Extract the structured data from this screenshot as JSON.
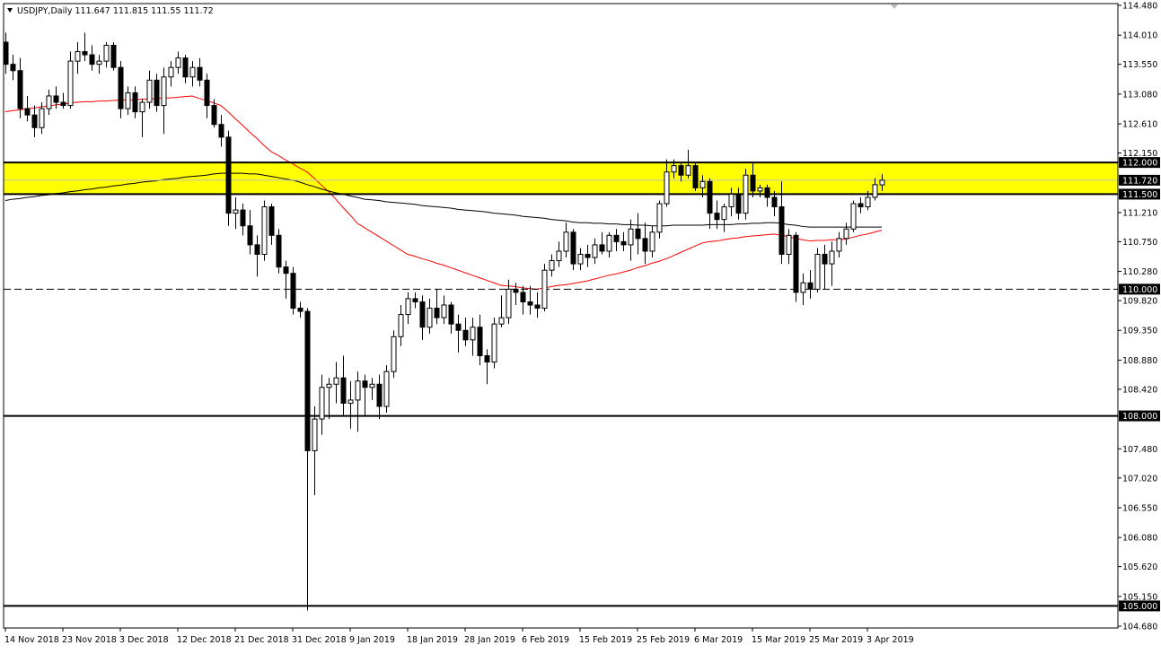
{
  "chart_data": {
    "type": "candlestick",
    "title": "USDJPY,Daily",
    "categories": [
      "14 Nov 2018",
      null,
      null,
      null,
      null,
      null,
      null,
      null,
      "23 Nov 2018",
      null,
      null,
      null,
      null,
      null,
      null,
      null,
      "3 Dec 2018",
      null,
      null,
      null,
      null,
      null,
      null,
      null,
      "12 Dec 2018",
      null,
      null,
      null,
      null,
      null,
      null,
      null,
      "21 Dec 2018",
      null,
      null,
      null,
      null,
      null,
      null,
      null,
      "31 Dec 2018",
      null,
      null,
      null,
      null,
      null,
      null,
      null,
      "9 Jan 2019",
      null,
      null,
      null,
      null,
      null,
      null,
      null,
      "18 Jan 2019",
      null,
      null,
      null,
      null,
      null,
      null,
      null,
      "28 Jan 2019",
      null,
      null,
      null,
      null,
      null,
      null,
      null,
      "6 Feb 2019",
      null,
      null,
      null,
      null,
      null,
      null,
      null,
      "15 Feb 2019",
      null,
      null,
      null,
      null,
      null,
      null,
      null,
      "25 Feb 2019",
      null,
      null,
      null,
      null,
      null,
      null,
      null,
      "6 Mar 2019",
      null,
      null,
      null,
      null,
      null,
      null,
      null,
      "15 Mar 2019",
      null,
      null,
      null,
      null,
      null,
      null,
      null,
      "25 Mar 2019",
      null,
      null,
      null,
      null,
      null,
      null,
      null,
      "3 Apr 2019",
      null,
      null
    ],
    "open": [
      113.9,
      113.55,
      113.45,
      112.85,
      112.75,
      112.55,
      112.85,
      113.05,
      112.95,
      112.9,
      113.6,
      113.75,
      113.7,
      113.55,
      113.6,
      113.85,
      113.5,
      112.85,
      113.1,
      112.8,
      112.95,
      113.3,
      112.9,
      113.35,
      113.5,
      113.65,
      113.35,
      113.5,
      113.3,
      112.9,
      112.6,
      112.4,
      111.2,
      111.25,
      111.0,
      110.7,
      110.55,
      111.3,
      110.85,
      110.35,
      110.25,
      109.7,
      109.65,
      107.45,
      107.95,
      108.45,
      108.5,
      108.6,
      108.2,
      108.25,
      108.55,
      108.45,
      108.5,
      108.15,
      108.7,
      109.25,
      109.6,
      109.85,
      109.8,
      109.4,
      109.7,
      109.55,
      109.75,
      109.45,
      109.35,
      109.2,
      109.4,
      108.95,
      108.85,
      109.45,
      109.55,
      110.0,
      109.95,
      109.8,
      109.75,
      109.7,
      110.3,
      110.45,
      110.6,
      110.9,
      110.4,
      110.55,
      110.5,
      110.7,
      110.6,
      110.85,
      110.75,
      110.7,
      110.95,
      110.8,
      110.6,
      110.9,
      111.35,
      111.85,
      111.95,
      111.8,
      111.95,
      111.6,
      111.7,
      111.2,
      111.1,
      111.3,
      111.5,
      111.2,
      111.8,
      111.55,
      111.6,
      111.45,
      111.3,
      110.55,
      110.85,
      109.95,
      110.1,
      110.0,
      110.55,
      110.4,
      110.6,
      110.8,
      110.95,
      111.35,
      111.3,
      111.45,
      111.647
    ],
    "high": [
      114.05,
      113.7,
      113.65,
      113.05,
      112.9,
      112.95,
      113.15,
      113.2,
      113.1,
      113.75,
      113.9,
      114.05,
      113.85,
      113.7,
      113.9,
      113.9,
      113.6,
      113.2,
      113.2,
      113.0,
      113.45,
      113.4,
      113.5,
      113.6,
      113.75,
      113.7,
      113.6,
      113.65,
      113.4,
      113.0,
      112.75,
      112.5,
      111.45,
      111.35,
      111.25,
      110.85,
      111.4,
      111.35,
      110.95,
      110.45,
      110.35,
      109.8,
      109.7,
      108.15,
      108.65,
      108.6,
      108.85,
      108.95,
      108.55,
      108.7,
      108.65,
      108.6,
      108.65,
      108.8,
      109.35,
      109.75,
      109.95,
      109.95,
      109.9,
      109.85,
      110.0,
      109.9,
      109.8,
      109.6,
      109.55,
      109.55,
      109.6,
      109.05,
      109.55,
      109.9,
      110.15,
      110.1,
      110.05,
      110.05,
      109.95,
      110.4,
      110.55,
      110.75,
      111.05,
      110.95,
      110.65,
      110.7,
      110.8,
      110.9,
      110.9,
      110.95,
      110.9,
      111.1,
      111.2,
      111.05,
      111.0,
      111.4,
      112.05,
      112.05,
      112.0,
      112.2,
      112.0,
      111.8,
      111.75,
      111.4,
      111.35,
      111.6,
      111.6,
      111.9,
      112.0,
      111.65,
      111.65,
      111.55,
      111.7,
      110.95,
      110.9,
      110.25,
      110.3,
      110.65,
      110.7,
      110.75,
      110.9,
      111.05,
      111.4,
      111.45,
      111.55,
      111.75,
      111.815
    ],
    "low": [
      113.4,
      113.3,
      112.7,
      112.65,
      112.4,
      112.45,
      112.75,
      112.85,
      112.85,
      112.85,
      113.4,
      113.6,
      113.45,
      113.4,
      113.5,
      113.45,
      112.7,
      112.75,
      112.7,
      112.4,
      112.85,
      112.8,
      112.45,
      113.2,
      113.4,
      113.25,
      113.2,
      113.2,
      112.7,
      112.55,
      112.25,
      111.0,
      110.95,
      110.85,
      110.55,
      110.2,
      110.45,
      110.7,
      110.25,
      109.85,
      109.6,
      109.55,
      104.93,
      106.75,
      107.7,
      107.95,
      108.2,
      108.0,
      107.8,
      107.75,
      108.0,
      108.25,
      107.95,
      108.05,
      108.6,
      109.1,
      109.45,
      109.7,
      109.2,
      109.3,
      109.45,
      109.45,
      109.3,
      109.0,
      109.1,
      108.95,
      108.8,
      108.5,
      108.75,
      109.4,
      109.45,
      109.75,
      109.6,
      109.6,
      109.55,
      109.65,
      110.2,
      110.35,
      110.5,
      110.3,
      110.3,
      110.35,
      110.4,
      110.55,
      110.5,
      110.6,
      110.6,
      110.45,
      110.55,
      110.4,
      110.5,
      110.8,
      111.3,
      111.75,
      111.7,
      111.75,
      111.55,
      111.45,
      110.95,
      110.95,
      110.9,
      111.15,
      111.1,
      111.1,
      111.45,
      111.45,
      111.3,
      111.15,
      110.4,
      110.4,
      109.8,
      109.75,
      109.85,
      109.95,
      110.0,
      110.05,
      110.5,
      110.7,
      110.9,
      111.2,
      111.25,
      111.4,
      111.55
    ],
    "close": [
      113.55,
      113.45,
      112.85,
      112.75,
      112.55,
      112.85,
      113.05,
      112.95,
      112.9,
      113.6,
      113.75,
      113.7,
      113.55,
      113.6,
      113.85,
      113.5,
      112.85,
      113.1,
      112.8,
      112.95,
      113.3,
      112.9,
      113.35,
      113.5,
      113.65,
      113.35,
      113.5,
      113.3,
      112.9,
      112.6,
      112.4,
      111.2,
      111.25,
      111.0,
      110.7,
      110.55,
      111.3,
      110.85,
      110.35,
      110.25,
      109.7,
      109.65,
      107.45,
      107.95,
      108.45,
      108.5,
      108.6,
      108.2,
      108.25,
      108.55,
      108.45,
      108.5,
      108.15,
      108.7,
      109.25,
      109.6,
      109.85,
      109.8,
      109.4,
      109.7,
      109.55,
      109.75,
      109.45,
      109.35,
      109.2,
      109.4,
      108.95,
      108.85,
      109.45,
      109.55,
      110.0,
      109.95,
      109.8,
      109.75,
      109.7,
      110.3,
      110.45,
      110.6,
      110.9,
      110.4,
      110.55,
      110.5,
      110.7,
      110.6,
      110.85,
      110.75,
      110.7,
      110.95,
      110.8,
      110.6,
      110.9,
      111.35,
      111.85,
      111.95,
      111.8,
      111.95,
      111.6,
      111.7,
      111.2,
      111.1,
      111.3,
      111.5,
      111.2,
      111.8,
      111.55,
      111.6,
      111.45,
      111.3,
      110.55,
      110.85,
      109.95,
      110.1,
      110.0,
      110.55,
      110.4,
      110.6,
      110.8,
      110.95,
      111.35,
      111.3,
      111.45,
      111.65,
      111.72
    ],
    "up_color": "#ffffff",
    "down_color": "#000000",
    "lines": [
      {
        "color": "#ff0000",
        "values": [
          112.8,
          112.82,
          112.83,
          112.85,
          112.86,
          112.88,
          112.89,
          112.91,
          112.92,
          112.94,
          112.95,
          112.96,
          112.96,
          112.97,
          112.97,
          112.98,
          112.98,
          112.99,
          112.99,
          113.0,
          113.0,
          113.01,
          113.02,
          113.02,
          113.03,
          113.04,
          113.05,
          113.01,
          112.98,
          112.94,
          112.9,
          112.8,
          112.69,
          112.59,
          112.48,
          112.38,
          112.27,
          112.17,
          112.11,
          112.04,
          111.98,
          111.91,
          111.85,
          111.75,
          111.64,
          111.54,
          111.42,
          111.29,
          111.17,
          111.04,
          110.97,
          110.9,
          110.83,
          110.76,
          110.69,
          110.62,
          110.55,
          110.52,
          110.48,
          110.45,
          110.41,
          110.38,
          110.34,
          110.3,
          110.26,
          110.22,
          110.18,
          110.14,
          110.1,
          110.06,
          110.05,
          110.04,
          110.02,
          110.01,
          110.0,
          110.02,
          110.04,
          110.06,
          110.07,
          110.09,
          110.11,
          110.13,
          110.16,
          110.19,
          110.22,
          110.24,
          110.27,
          110.3,
          110.34,
          110.37,
          110.41,
          110.44,
          110.48,
          110.53,
          110.58,
          110.63,
          110.68,
          110.73,
          110.75,
          110.76,
          110.78,
          110.8,
          110.81,
          110.83,
          110.84,
          110.85,
          110.86,
          110.87,
          110.85,
          110.83,
          110.8,
          110.78,
          110.76,
          110.77,
          110.77,
          110.78,
          110.78,
          110.79,
          110.82,
          110.85,
          110.87,
          110.9,
          110.93
        ]
      },
      {
        "color": "#000000",
        "values": [
          111.4,
          111.42,
          111.43,
          111.45,
          111.46,
          111.48,
          111.49,
          111.51,
          111.52,
          111.54,
          111.55,
          111.57,
          111.58,
          111.6,
          111.61,
          111.63,
          111.64,
          111.66,
          111.67,
          111.69,
          111.7,
          111.71,
          111.73,
          111.74,
          111.75,
          111.77,
          111.78,
          111.79,
          111.8,
          111.82,
          111.83,
          111.83,
          111.83,
          111.83,
          111.82,
          111.82,
          111.8,
          111.78,
          111.76,
          111.74,
          111.72,
          111.69,
          111.65,
          111.62,
          111.58,
          111.55,
          111.52,
          111.5,
          111.47,
          111.45,
          111.42,
          111.41,
          111.4,
          111.38,
          111.37,
          111.36,
          111.35,
          111.34,
          111.32,
          111.31,
          111.3,
          111.29,
          111.28,
          111.26,
          111.25,
          111.24,
          111.23,
          111.22,
          111.2,
          111.19,
          111.18,
          111.17,
          111.15,
          111.14,
          111.13,
          111.12,
          111.1,
          111.09,
          111.08,
          111.06,
          111.05,
          111.05,
          111.04,
          111.04,
          111.03,
          111.03,
          111.02,
          111.02,
          111.01,
          111.01,
          111.0,
          111.0,
          111.0,
          111.01,
          111.01,
          111.01,
          111.01,
          111.01,
          111.02,
          111.02,
          111.02,
          111.02,
          111.03,
          111.03,
          111.04,
          111.04,
          111.05,
          111.05,
          111.04,
          111.02,
          111.01,
          110.99,
          110.98,
          110.98,
          110.98,
          110.98,
          110.98,
          110.98,
          110.98,
          110.98,
          110.98,
          110.98,
          110.98
        ]
      }
    ],
    "zone": {
      "from": 111.5,
      "to": 112,
      "color": "#ffff00"
    },
    "levels": [
      {
        "value": 112,
        "label": "112.000",
        "style": "solid"
      },
      {
        "value": 111.72,
        "label": "111.720",
        "style": "price"
      },
      {
        "value": 111.5,
        "label": "111.500",
        "style": "solid"
      },
      {
        "value": 110,
        "label": "110.000",
        "style": "dashed"
      },
      {
        "value": 108,
        "label": "108.000",
        "style": "solid"
      },
      {
        "value": 105,
        "label": "105.000",
        "style": "solid"
      }
    ],
    "ylim": [
      104.68,
      114.48
    ],
    "yticks": [
      {
        "value": 114.48,
        "label": "114.480"
      },
      {
        "value": 114.01,
        "label": "114.010"
      },
      {
        "value": 113.55,
        "label": "113.550"
      },
      {
        "value": 113.08,
        "label": "113.080"
      },
      {
        "value": 112.61,
        "label": "112.610"
      },
      {
        "value": 112.15,
        "label": "112.150"
      },
      {
        "value": 111.21,
        "label": "111.210"
      },
      {
        "value": 110.75,
        "label": "110.750"
      },
      {
        "value": 110.28,
        "label": "110.280"
      },
      {
        "value": 109.82,
        "label": "109.820"
      },
      {
        "value": 109.35,
        "label": "109.350"
      },
      {
        "value": 108.88,
        "label": "108.880"
      },
      {
        "value": 108.42,
        "label": "108.420"
      },
      {
        "value": 107.48,
        "label": "107.480"
      },
      {
        "value": 107.02,
        "label": "107.020"
      },
      {
        "value": 106.55,
        "label": "106.550"
      },
      {
        "value": 106.08,
        "label": "106.080"
      },
      {
        "value": 105.62,
        "label": "105.620"
      },
      {
        "value": 105.15,
        "label": "105.150"
      },
      {
        "value": 104.68,
        "label": "104.680"
      }
    ]
  }
}
